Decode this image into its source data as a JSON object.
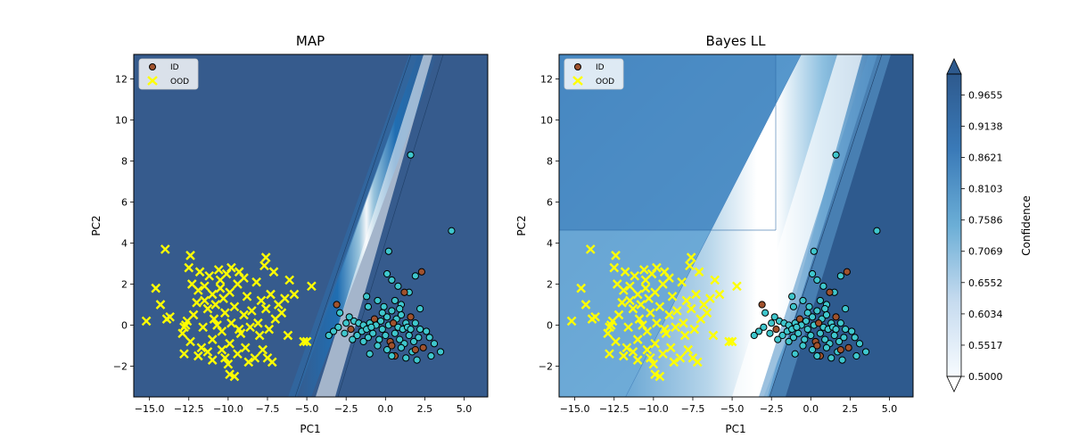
{
  "chart_data": [
    {
      "type": "scatter",
      "title": "MAP",
      "xlabel": "PC1",
      "ylabel": "PC2",
      "xlim": [
        -16,
        6.5
      ],
      "ylim": [
        -3.5,
        13.2
      ],
      "xticks": [
        "−15.0",
        "−12.5",
        "−10.0",
        "−7.5",
        "−5.0",
        "−2.5",
        "0.0",
        "2.5",
        "5.0"
      ],
      "yticks": [
        "−2",
        "0",
        "2",
        "4",
        "6",
        "8",
        "10",
        "12"
      ],
      "legend": {
        "position": "top-left",
        "entries": [
          "ID",
          "OOD"
        ]
      },
      "background": "uniform high confidence (~0.97) with a narrow low-confidence boundary band from (-5,-3.5) to (2.5,13.2)",
      "series": [
        {
          "name": "ID",
          "marker": "circle",
          "colors": [
            "#3fc7cd",
            "#a0522d"
          ],
          "points": [
            [
              1.6,
              8.3
            ],
            [
              4.2,
              4.6
            ],
            [
              0.2,
              3.6
            ],
            [
              2.3,
              2.6
            ],
            [
              1.9,
              2.4
            ],
            [
              0.1,
              2.5
            ],
            [
              0.8,
              1.9
            ],
            [
              0.4,
              2.2
            ],
            [
              -1.2,
              1.4
            ],
            [
              1.5,
              1.6
            ],
            [
              1.2,
              1.6
            ],
            [
              -0.5,
              1.2
            ],
            [
              -0.1,
              0.9
            ],
            [
              0.6,
              1.2
            ],
            [
              1.0,
              1.0
            ],
            [
              2.2,
              0.8
            ],
            [
              -1.1,
              0.9
            ],
            [
              -3.1,
              1.0
            ],
            [
              -2.9,
              0.6
            ],
            [
              -2.3,
              0.4
            ],
            [
              -2.0,
              0.2
            ],
            [
              -1.7,
              0.1
            ],
            [
              -1.4,
              0.0
            ],
            [
              -1.0,
              0.1
            ],
            [
              -0.7,
              0.3
            ],
            [
              -0.3,
              0.2
            ],
            [
              0.1,
              0.4
            ],
            [
              0.4,
              0.7
            ],
            [
              0.7,
              0.3
            ],
            [
              1.0,
              0.5
            ],
            [
              1.3,
              0.1
            ],
            [
              1.6,
              0.4
            ],
            [
              1.9,
              0.1
            ],
            [
              2.2,
              -0.2
            ],
            [
              -3.3,
              -0.3
            ],
            [
              -3.6,
              -0.5
            ],
            [
              -3.0,
              -0.1
            ],
            [
              -2.6,
              -0.4
            ],
            [
              -2.2,
              -0.2
            ],
            [
              -1.8,
              -0.5
            ],
            [
              -1.5,
              -0.3
            ],
            [
              -1.1,
              -0.6
            ],
            [
              -0.8,
              -0.4
            ],
            [
              -0.4,
              -0.7
            ],
            [
              0.0,
              -0.5
            ],
            [
              0.3,
              -0.8
            ],
            [
              0.6,
              -0.4
            ],
            [
              0.9,
              -0.7
            ],
            [
              1.2,
              -0.9
            ],
            [
              1.5,
              -0.5
            ],
            [
              1.8,
              -0.8
            ],
            [
              2.1,
              -0.6
            ],
            [
              2.4,
              -1.1
            ],
            [
              2.8,
              -0.6
            ],
            [
              3.1,
              -0.9
            ],
            [
              3.5,
              -1.3
            ],
            [
              2.9,
              -1.5
            ],
            [
              1.7,
              -1.3
            ],
            [
              1.3,
              -1.6
            ],
            [
              0.6,
              -1.5
            ],
            [
              0.1,
              -1.2
            ],
            [
              -0.5,
              -1.0
            ],
            [
              -1.4,
              -0.8
            ],
            [
              -2.1,
              -0.7
            ],
            [
              -0.2,
              -0.2
            ],
            [
              0.2,
              0.0
            ],
            [
              0.5,
              0.1
            ],
            [
              0.8,
              -0.1
            ],
            [
              1.1,
              -0.2
            ],
            [
              1.4,
              -0.1
            ],
            [
              -0.6,
              0.0
            ],
            [
              -1.2,
              -0.2
            ],
            [
              -2.5,
              0.1
            ],
            [
              0.4,
              -1.0
            ],
            [
              1.0,
              -1.1
            ],
            [
              1.6,
              -0.2
            ],
            [
              2.6,
              -0.3
            ],
            [
              0.9,
              0.8
            ],
            [
              -0.2,
              0.6
            ],
            [
              -0.9,
              -0.1
            ],
            [
              1.9,
              -1.2
            ],
            [
              2.0,
              -1.7
            ],
            [
              0.4,
              -1.5
            ],
            [
              -1.0,
              -1.4
            ]
          ]
        },
        {
          "name": "OOD",
          "marker": "x",
          "color": "#ffff00",
          "points": [
            [
              -14,
              3.7
            ],
            [
              -14.6,
              1.8
            ],
            [
              -14.3,
              1.0
            ],
            [
              -13.9,
              0.3
            ],
            [
              -13.7,
              0.4
            ],
            [
              -15.2,
              0.2
            ],
            [
              -12.4,
              3.4
            ],
            [
              -12.5,
              2.8
            ],
            [
              -11.8,
              2.6
            ],
            [
              -11.2,
              2.4
            ],
            [
              -10.6,
              2.7
            ],
            [
              -10.1,
              2.5
            ],
            [
              -9.8,
              2.8
            ],
            [
              -9.3,
              2.6
            ],
            [
              -7.6,
              3.3
            ],
            [
              -7.7,
              2.9
            ],
            [
              -6.1,
              2.2
            ],
            [
              -4.7,
              1.9
            ],
            [
              -12.3,
              2.0
            ],
            [
              -11.9,
              1.7
            ],
            [
              -11.5,
              1.9
            ],
            [
              -11.0,
              1.5
            ],
            [
              -10.5,
              1.8
            ],
            [
              -9.9,
              1.6
            ],
            [
              -9.4,
              2.0
            ],
            [
              -8.8,
              1.4
            ],
            [
              -8.2,
              2.1
            ],
            [
              -7.9,
              1.2
            ],
            [
              -7.3,
              1.5
            ],
            [
              -6.8,
              1.0
            ],
            [
              -6.4,
              1.3
            ],
            [
              -5.8,
              1.5
            ],
            [
              -12.0,
              1.1
            ],
            [
              -11.3,
              0.8
            ],
            [
              -10.8,
              1.0
            ],
            [
              -10.2,
              0.6
            ],
            [
              -9.6,
              0.9
            ],
            [
              -9.0,
              0.5
            ],
            [
              -8.5,
              0.7
            ],
            [
              -7.6,
              0.8
            ],
            [
              -7.0,
              0.3
            ],
            [
              -6.6,
              0.6
            ],
            [
              -12.6,
              0.2
            ],
            [
              -12.2,
              0.5
            ],
            [
              -11.6,
              -0.1
            ],
            [
              -10.9,
              0.3
            ],
            [
              -10.4,
              -0.3
            ],
            [
              -9.8,
              0.1
            ],
            [
              -9.2,
              -0.4
            ],
            [
              -8.6,
              -0.1
            ],
            [
              -8.0,
              -0.5
            ],
            [
              -7.4,
              -0.2
            ],
            [
              -6.2,
              -0.5
            ],
            [
              -12.9,
              -0.4
            ],
            [
              -12.4,
              -0.8
            ],
            [
              -11.7,
              -1.1
            ],
            [
              -11.0,
              -0.7
            ],
            [
              -10.4,
              -1.2
            ],
            [
              -9.9,
              -0.9
            ],
            [
              -9.4,
              -1.4
            ],
            [
              -8.9,
              -1.1
            ],
            [
              -8.3,
              -1.6
            ],
            [
              -7.8,
              -1.2
            ],
            [
              -7.2,
              -1.8
            ],
            [
              -5.2,
              -0.8
            ],
            [
              -5.0,
              -0.8
            ],
            [
              -12.8,
              -1.4
            ],
            [
              -11.9,
              -1.5
            ],
            [
              -11.0,
              -1.7
            ],
            [
              -10.2,
              -1.6
            ],
            [
              -9.9,
              -2.4
            ],
            [
              -9.6,
              -2.5
            ],
            [
              -8.7,
              -1.8
            ],
            [
              -7.5,
              -1.6
            ],
            [
              -10.7,
              0.0
            ],
            [
              -9.3,
              -0.2
            ],
            [
              -8.1,
              0.1
            ],
            [
              -12.8,
              -0.1
            ],
            [
              -11.3,
              -1.3
            ],
            [
              -10.0,
              -1.9
            ],
            [
              -7.1,
              2.6
            ],
            [
              -10.5,
              2.2
            ],
            [
              -9.0,
              2.3
            ],
            [
              -12.7,
              0.0
            ],
            [
              -11.5,
              1.2
            ],
            [
              -10.3,
              1.3
            ]
          ]
        }
      ]
    },
    {
      "type": "scatter",
      "title": "Bayes LL",
      "xlabel": "PC1",
      "ylabel": "PC2",
      "xlim": [
        -16,
        6.5
      ],
      "ylim": [
        -3.5,
        13.2
      ],
      "xticks": [
        "−15.0",
        "−12.5",
        "−10.0",
        "−7.5",
        "−5.0",
        "−2.5",
        "0.0",
        "2.5",
        "5.0"
      ],
      "yticks": [
        "−2",
        "0",
        "2",
        "4",
        "6",
        "8",
        "10",
        "12"
      ],
      "legend": {
        "position": "top-left",
        "entries": [
          "ID",
          "OOD"
        ]
      },
      "background": "medium confidence (~0.80) on the left, wide low-confidence band along the decision boundary, high confidence on the right",
      "series": [
        {
          "name": "ID",
          "marker": "circle",
          "colors": [
            "#3fc7cd",
            "#a0522d"
          ]
        },
        {
          "name": "OOD",
          "marker": "x",
          "color": "#ffff00"
        }
      ]
    }
  ],
  "colorbar": {
    "label": "Confidence",
    "min": 0.5,
    "max": 1.0,
    "ticks": [
      "0.5000",
      "0.5517",
      "0.6034",
      "0.6552",
      "0.7069",
      "0.7586",
      "0.8103",
      "0.8621",
      "0.9138",
      "0.9655"
    ]
  }
}
